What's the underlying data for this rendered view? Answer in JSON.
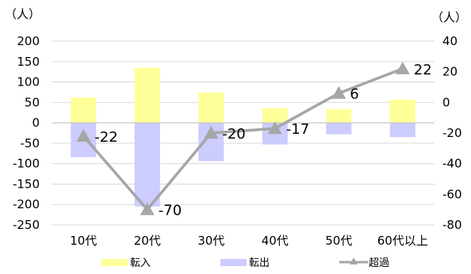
{
  "chart_data": {
    "type": "bar",
    "categories": [
      "10代",
      "20代",
      "30代",
      "40代",
      "50代",
      "60代以上"
    ],
    "series": [
      {
        "name": "転入",
        "kind": "bar",
        "axis": "left",
        "color": "#ffff99",
        "values": [
          62,
          135,
          74,
          36,
          34,
          57
        ]
      },
      {
        "name": "転出",
        "kind": "bar",
        "axis": "left",
        "color": "#ccccff",
        "values": [
          -84,
          -205,
          -94,
          -53,
          -28,
          -35
        ]
      },
      {
        "name": "超過",
        "kind": "line",
        "axis": "right",
        "color": "#a6a6a6",
        "values": [
          -22,
          -70,
          -20,
          -17,
          6,
          22
        ]
      }
    ],
    "data_labels": [
      "-22",
      "-70",
      "-20",
      "-17",
      "6",
      "22"
    ],
    "y_left": {
      "unit": "（人）",
      "min": -250,
      "max": 200,
      "ticks": [
        "200",
        "150",
        "100",
        "50",
        "0",
        "-50",
        "-100",
        "-150",
        "-200",
        "-250"
      ]
    },
    "y_right": {
      "unit": "（人）",
      "min": -80,
      "max": 40,
      "ticks": [
        "40",
        "20",
        "0",
        "-20",
        "-40",
        "-60",
        "-80"
      ]
    },
    "grid": true,
    "legend_position": "bottom"
  }
}
